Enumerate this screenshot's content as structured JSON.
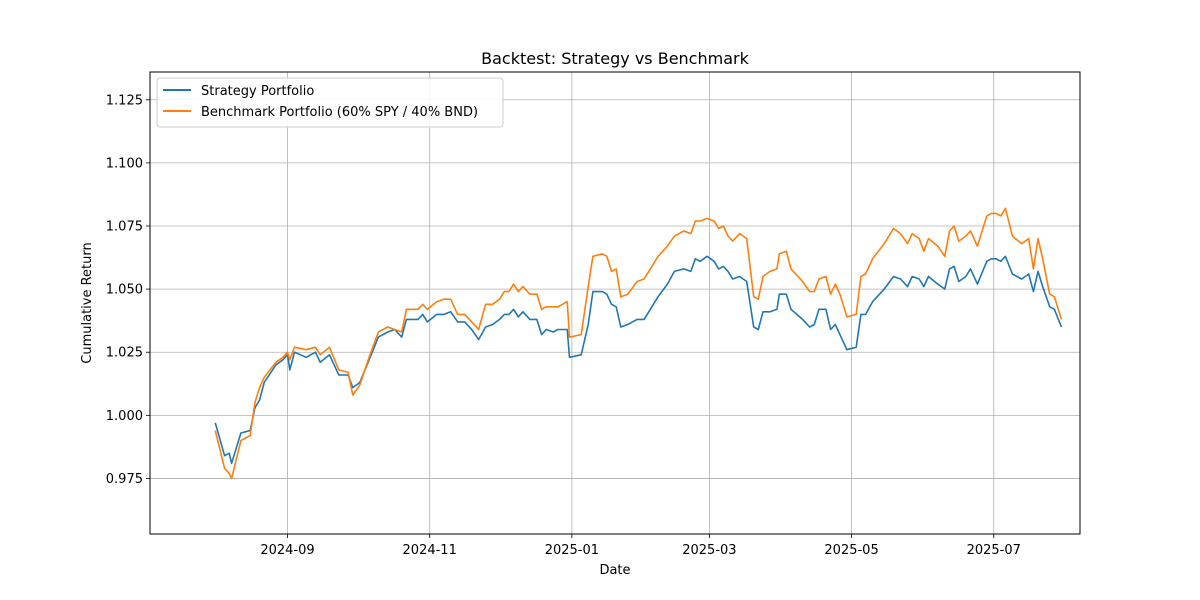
{
  "chart_data": {
    "type": "line",
    "title": "Backtest: Strategy vs Benchmark",
    "xlabel": "Date",
    "ylabel": "Cumulative Return",
    "xlim": [
      "2024-07-04",
      "2025-08-07"
    ],
    "ylim": [
      0.953,
      1.136
    ],
    "x_ticks": [
      "2024-09",
      "2024-11",
      "2025-01",
      "2025-03",
      "2025-05",
      "2025-07"
    ],
    "y_ticks": [
      "0.975",
      "1.000",
      "1.025",
      "1.050",
      "1.075",
      "1.100",
      "1.125"
    ],
    "grid": true,
    "legend_position": "top-left",
    "series": [
      {
        "name": "Strategy Portfolio",
        "color": "#1f77b4",
        "points": [
          [
            "2024-08-01",
            0.997
          ],
          [
            "2024-08-05",
            0.984
          ],
          [
            "2024-08-07",
            0.985
          ],
          [
            "2024-08-08",
            0.981
          ],
          [
            "2024-08-12",
            0.993
          ],
          [
            "2024-08-16",
            0.994
          ],
          [
            "2024-08-18",
            1.003
          ],
          [
            "2024-08-20",
            1.006
          ],
          [
            "2024-08-22",
            1.013
          ],
          [
            "2024-08-27",
            1.02
          ],
          [
            "2024-08-30",
            1.022
          ],
          [
            "2024-09-01",
            1.024
          ],
          [
            "2024-09-02",
            1.018
          ],
          [
            "2024-09-04",
            1.025
          ],
          [
            "2024-09-09",
            1.023
          ],
          [
            "2024-09-13",
            1.025
          ],
          [
            "2024-09-15",
            1.021
          ],
          [
            "2024-09-19",
            1.024
          ],
          [
            "2024-09-23",
            1.016
          ],
          [
            "2024-09-27",
            1.016
          ],
          [
            "2024-09-29",
            1.011
          ],
          [
            "2024-10-02",
            1.013
          ],
          [
            "2024-10-06",
            1.022
          ],
          [
            "2024-10-10",
            1.031
          ],
          [
            "2024-10-14",
            1.033
          ],
          [
            "2024-10-17",
            1.034
          ],
          [
            "2024-10-20",
            1.031
          ],
          [
            "2024-10-22",
            1.038
          ],
          [
            "2024-10-27",
            1.038
          ],
          [
            "2024-10-29",
            1.04
          ],
          [
            "2024-10-31",
            1.037
          ],
          [
            "2024-11-04",
            1.04
          ],
          [
            "2024-11-07",
            1.04
          ],
          [
            "2024-11-10",
            1.041
          ],
          [
            "2024-11-13",
            1.037
          ],
          [
            "2024-11-16",
            1.037
          ],
          [
            "2024-11-19",
            1.034
          ],
          [
            "2024-11-22",
            1.03
          ],
          [
            "2024-11-25",
            1.035
          ],
          [
            "2024-11-28",
            1.036
          ],
          [
            "2024-12-01",
            1.038
          ],
          [
            "2024-12-03",
            1.04
          ],
          [
            "2024-12-05",
            1.04
          ],
          [
            "2024-12-07",
            1.042
          ],
          [
            "2024-12-09",
            1.039
          ],
          [
            "2024-12-11",
            1.041
          ],
          [
            "2024-12-14",
            1.038
          ],
          [
            "2024-12-17",
            1.038
          ],
          [
            "2024-12-19",
            1.032
          ],
          [
            "2024-12-21",
            1.034
          ],
          [
            "2024-12-24",
            1.033
          ],
          [
            "2024-12-26",
            1.034
          ],
          [
            "2024-12-30",
            1.034
          ],
          [
            "2024-12-31",
            1.023
          ],
          [
            "2025-01-05",
            1.024
          ],
          [
            "2025-01-08",
            1.036
          ],
          [
            "2025-01-10",
            1.049
          ],
          [
            "2025-01-14",
            1.049
          ],
          [
            "2025-01-16",
            1.048
          ],
          [
            "2025-01-18",
            1.044
          ],
          [
            "2025-01-20",
            1.043
          ],
          [
            "2025-01-22",
            1.035
          ],
          [
            "2025-01-25",
            1.036
          ],
          [
            "2025-01-29",
            1.038
          ],
          [
            "2025-02-01",
            1.038
          ],
          [
            "2025-02-03",
            1.041
          ],
          [
            "2025-02-07",
            1.047
          ],
          [
            "2025-02-11",
            1.052
          ],
          [
            "2025-02-14",
            1.057
          ],
          [
            "2025-02-18",
            1.058
          ],
          [
            "2025-02-21",
            1.057
          ],
          [
            "2025-02-23",
            1.062
          ],
          [
            "2025-02-25",
            1.061
          ],
          [
            "2025-02-28",
            1.063
          ],
          [
            "2025-03-03",
            1.061
          ],
          [
            "2025-03-05",
            1.058
          ],
          [
            "2025-03-07",
            1.059
          ],
          [
            "2025-03-09",
            1.057
          ],
          [
            "2025-03-11",
            1.054
          ],
          [
            "2025-03-14",
            1.055
          ],
          [
            "2025-03-17",
            1.053
          ],
          [
            "2025-03-20",
            1.035
          ],
          [
            "2025-03-22",
            1.034
          ],
          [
            "2025-03-24",
            1.041
          ],
          [
            "2025-03-27",
            1.041
          ],
          [
            "2025-03-30",
            1.042
          ],
          [
            "2025-03-31",
            1.048
          ],
          [
            "2025-04-03",
            1.048
          ],
          [
            "2025-04-05",
            1.042
          ],
          [
            "2025-04-10",
            1.038
          ],
          [
            "2025-04-13",
            1.035
          ],
          [
            "2025-04-15",
            1.036
          ],
          [
            "2025-04-17",
            1.042
          ],
          [
            "2025-04-20",
            1.042
          ],
          [
            "2025-04-22",
            1.034
          ],
          [
            "2025-04-24",
            1.036
          ],
          [
            "2025-04-26",
            1.032
          ],
          [
            "2025-04-29",
            1.026
          ],
          [
            "2025-05-03",
            1.027
          ],
          [
            "2025-05-05",
            1.04
          ],
          [
            "2025-05-07",
            1.04
          ],
          [
            "2025-05-10",
            1.045
          ],
          [
            "2025-05-15",
            1.05
          ],
          [
            "2025-05-19",
            1.055
          ],
          [
            "2025-05-22",
            1.054
          ],
          [
            "2025-05-25",
            1.051
          ],
          [
            "2025-05-27",
            1.055
          ],
          [
            "2025-05-30",
            1.054
          ],
          [
            "2025-06-01",
            1.051
          ],
          [
            "2025-06-03",
            1.055
          ],
          [
            "2025-06-07",
            1.052
          ],
          [
            "2025-06-10",
            1.05
          ],
          [
            "2025-06-12",
            1.058
          ],
          [
            "2025-06-14",
            1.059
          ],
          [
            "2025-06-16",
            1.053
          ],
          [
            "2025-06-19",
            1.055
          ],
          [
            "2025-06-21",
            1.058
          ],
          [
            "2025-06-24",
            1.052
          ],
          [
            "2025-06-28",
            1.061
          ],
          [
            "2025-06-30",
            1.062
          ],
          [
            "2025-07-02",
            1.062
          ],
          [
            "2025-07-04",
            1.061
          ],
          [
            "2025-07-06",
            1.063
          ],
          [
            "2025-07-09",
            1.056
          ],
          [
            "2025-07-13",
            1.054
          ],
          [
            "2025-07-16",
            1.056
          ],
          [
            "2025-07-18",
            1.049
          ],
          [
            "2025-07-20",
            1.057
          ],
          [
            "2025-07-22",
            1.051
          ],
          [
            "2025-07-25",
            1.043
          ],
          [
            "2025-07-27",
            1.042
          ],
          [
            "2025-07-30",
            1.035
          ]
        ]
      },
      {
        "name": "Benchmark Portfolio (60% SPY / 40% BND)",
        "color": "#ff7f0e",
        "points": [
          [
            "2024-08-01",
            0.994
          ],
          [
            "2024-08-05",
            0.979
          ],
          [
            "2024-08-07",
            0.977
          ],
          [
            "2024-08-08",
            0.975
          ],
          [
            "2024-08-12",
            0.99
          ],
          [
            "2024-08-16",
            0.992
          ],
          [
            "2024-08-18",
            1.005
          ],
          [
            "2024-08-20",
            1.011
          ],
          [
            "2024-08-22",
            1.015
          ],
          [
            "2024-08-27",
            1.021
          ],
          [
            "2024-08-30",
            1.023
          ],
          [
            "2024-09-01",
            1.025
          ],
          [
            "2024-09-02",
            1.022
          ],
          [
            "2024-09-04",
            1.027
          ],
          [
            "2024-09-09",
            1.026
          ],
          [
            "2024-09-13",
            1.027
          ],
          [
            "2024-09-15",
            1.024
          ],
          [
            "2024-09-19",
            1.027
          ],
          [
            "2024-09-23",
            1.018
          ],
          [
            "2024-09-27",
            1.017
          ],
          [
            "2024-09-29",
            1.008
          ],
          [
            "2024-10-02",
            1.012
          ],
          [
            "2024-10-06",
            1.023
          ],
          [
            "2024-10-10",
            1.033
          ],
          [
            "2024-10-14",
            1.035
          ],
          [
            "2024-10-17",
            1.034
          ],
          [
            "2024-10-20",
            1.033
          ],
          [
            "2024-10-22",
            1.042
          ],
          [
            "2024-10-27",
            1.042
          ],
          [
            "2024-10-29",
            1.044
          ],
          [
            "2024-10-31",
            1.042
          ],
          [
            "2024-11-04",
            1.045
          ],
          [
            "2024-11-07",
            1.046
          ],
          [
            "2024-11-10",
            1.046
          ],
          [
            "2024-11-13",
            1.04
          ],
          [
            "2024-11-16",
            1.04
          ],
          [
            "2024-11-19",
            1.037
          ],
          [
            "2024-11-22",
            1.034
          ],
          [
            "2024-11-25",
            1.044
          ],
          [
            "2024-11-28",
            1.044
          ],
          [
            "2024-12-01",
            1.046
          ],
          [
            "2024-12-03",
            1.049
          ],
          [
            "2024-12-05",
            1.049
          ],
          [
            "2024-12-07",
            1.052
          ],
          [
            "2024-12-09",
            1.049
          ],
          [
            "2024-12-11",
            1.051
          ],
          [
            "2024-12-14",
            1.048
          ],
          [
            "2024-12-17",
            1.048
          ],
          [
            "2024-12-19",
            1.042
          ],
          [
            "2024-12-21",
            1.043
          ],
          [
            "2024-12-24",
            1.043
          ],
          [
            "2024-12-26",
            1.043
          ],
          [
            "2024-12-30",
            1.045
          ],
          [
            "2024-12-31",
            1.031
          ],
          [
            "2025-01-05",
            1.032
          ],
          [
            "2025-01-08",
            1.051
          ],
          [
            "2025-01-10",
            1.063
          ],
          [
            "2025-01-14",
            1.064
          ],
          [
            "2025-01-16",
            1.063
          ],
          [
            "2025-01-18",
            1.057
          ],
          [
            "2025-01-20",
            1.058
          ],
          [
            "2025-01-22",
            1.047
          ],
          [
            "2025-01-25",
            1.048
          ],
          [
            "2025-01-29",
            1.053
          ],
          [
            "2025-02-01",
            1.054
          ],
          [
            "2025-02-03",
            1.057
          ],
          [
            "2025-02-07",
            1.063
          ],
          [
            "2025-02-11",
            1.067
          ],
          [
            "2025-02-14",
            1.071
          ],
          [
            "2025-02-18",
            1.073
          ],
          [
            "2025-02-21",
            1.072
          ],
          [
            "2025-02-23",
            1.077
          ],
          [
            "2025-02-25",
            1.077
          ],
          [
            "2025-02-28",
            1.078
          ],
          [
            "2025-03-03",
            1.077
          ],
          [
            "2025-03-05",
            1.074
          ],
          [
            "2025-03-07",
            1.075
          ],
          [
            "2025-03-09",
            1.071
          ],
          [
            "2025-03-11",
            1.069
          ],
          [
            "2025-03-14",
            1.072
          ],
          [
            "2025-03-17",
            1.07
          ],
          [
            "2025-03-20",
            1.047
          ],
          [
            "2025-03-22",
            1.046
          ],
          [
            "2025-03-24",
            1.055
          ],
          [
            "2025-03-27",
            1.057
          ],
          [
            "2025-03-30",
            1.058
          ],
          [
            "2025-03-31",
            1.064
          ],
          [
            "2025-04-03",
            1.065
          ],
          [
            "2025-04-05",
            1.058
          ],
          [
            "2025-04-10",
            1.053
          ],
          [
            "2025-04-13",
            1.049
          ],
          [
            "2025-04-15",
            1.049
          ],
          [
            "2025-04-17",
            1.054
          ],
          [
            "2025-04-20",
            1.055
          ],
          [
            "2025-04-22",
            1.048
          ],
          [
            "2025-04-24",
            1.052
          ],
          [
            "2025-04-26",
            1.048
          ],
          [
            "2025-04-29",
            1.039
          ],
          [
            "2025-05-03",
            1.04
          ],
          [
            "2025-05-05",
            1.055
          ],
          [
            "2025-05-07",
            1.056
          ],
          [
            "2025-05-10",
            1.062
          ],
          [
            "2025-05-15",
            1.068
          ],
          [
            "2025-05-19",
            1.074
          ],
          [
            "2025-05-22",
            1.072
          ],
          [
            "2025-05-25",
            1.068
          ],
          [
            "2025-05-27",
            1.072
          ],
          [
            "2025-05-30",
            1.07
          ],
          [
            "2025-06-01",
            1.065
          ],
          [
            "2025-06-03",
            1.07
          ],
          [
            "2025-06-07",
            1.067
          ],
          [
            "2025-06-10",
            1.063
          ],
          [
            "2025-06-12",
            1.073
          ],
          [
            "2025-06-14",
            1.075
          ],
          [
            "2025-06-16",
            1.069
          ],
          [
            "2025-06-19",
            1.071
          ],
          [
            "2025-06-21",
            1.073
          ],
          [
            "2025-06-24",
            1.067
          ],
          [
            "2025-06-28",
            1.079
          ],
          [
            "2025-06-30",
            1.08
          ],
          [
            "2025-07-02",
            1.08
          ],
          [
            "2025-07-04",
            1.079
          ],
          [
            "2025-07-06",
            1.082
          ],
          [
            "2025-07-09",
            1.071
          ],
          [
            "2025-07-13",
            1.068
          ],
          [
            "2025-07-16",
            1.07
          ],
          [
            "2025-07-18",
            1.058
          ],
          [
            "2025-07-20",
            1.07
          ],
          [
            "2025-07-22",
            1.062
          ],
          [
            "2025-07-25",
            1.048
          ],
          [
            "2025-07-27",
            1.047
          ],
          [
            "2025-07-30",
            1.038
          ]
        ]
      }
    ]
  }
}
